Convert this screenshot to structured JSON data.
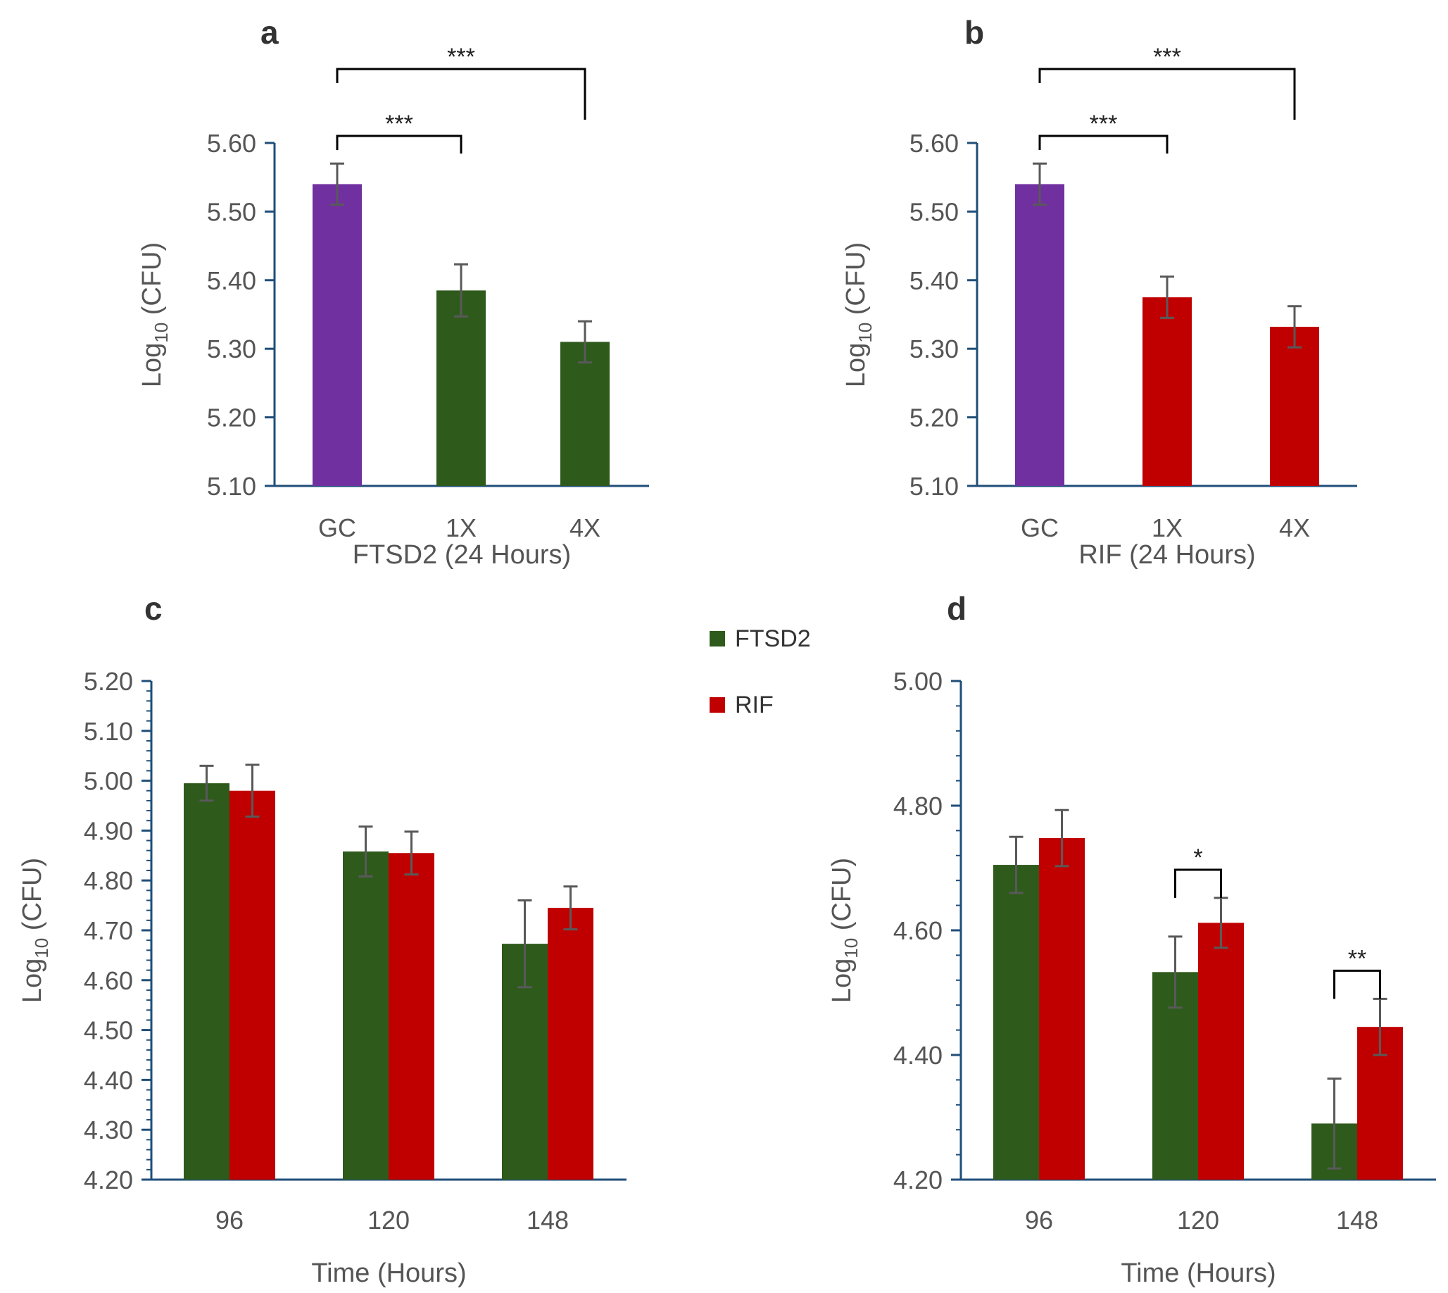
{
  "legend": {
    "items": [
      {
        "label": "FTSD2",
        "color": "#2e5a1c"
      },
      {
        "label": "RIF",
        "color": "#c00000"
      }
    ],
    "placement": "between-top-panels-c-and-d"
  },
  "colors": {
    "gc": "#7030a0",
    "ftsd2": "#2e5a1c",
    "rif": "#c00000",
    "axis": "#1f4e79",
    "error_bar": "#595959"
  },
  "chart_data": [
    {
      "panel": "a",
      "type": "bar",
      "categories": [
        "GC",
        "1X",
        "4X"
      ],
      "values": [
        5.54,
        5.385,
        5.31
      ],
      "errors": [
        0.03,
        0.038,
        0.03
      ],
      "bar_colors": [
        "#7030a0",
        "#2e5a1c",
        "#2e5a1c"
      ],
      "title": "",
      "xlabel": "FTSD2 (24 Hours)",
      "ylabel_main": "Log",
      "ylabel_sub": "10",
      "ylabel_rest": "(CFU)",
      "ylim": [
        5.1,
        5.6
      ],
      "yticks": [
        "5.10",
        "5.20",
        "5.30",
        "5.40",
        "5.50",
        "5.60"
      ],
      "grid": false,
      "significance": [
        {
          "from": 0,
          "to": 1,
          "label": "***"
        },
        {
          "from": 0,
          "to": 2,
          "label": "***"
        }
      ]
    },
    {
      "panel": "b",
      "type": "bar",
      "categories": [
        "GC",
        "1X",
        "4X"
      ],
      "values": [
        5.54,
        5.375,
        5.332
      ],
      "errors": [
        0.03,
        0.03,
        0.03
      ],
      "bar_colors": [
        "#7030a0",
        "#c00000",
        "#c00000"
      ],
      "title": "",
      "xlabel": "RIF (24 Hours)",
      "ylabel_main": "Log",
      "ylabel_sub": "10",
      "ylabel_rest": "(CFU)",
      "ylim": [
        5.1,
        5.6
      ],
      "yticks": [
        "5.10",
        "5.20",
        "5.30",
        "5.40",
        "5.50",
        "5.60"
      ],
      "grid": false,
      "significance": [
        {
          "from": 0,
          "to": 1,
          "label": "***"
        },
        {
          "from": 0,
          "to": 2,
          "label": "***"
        }
      ]
    },
    {
      "panel": "c",
      "type": "bar",
      "categories": [
        "96",
        "120",
        "148"
      ],
      "series": [
        {
          "name": "FTSD2",
          "color": "#2e5a1c",
          "values": [
            4.995,
            4.858,
            4.673
          ],
          "errors": [
            0.035,
            0.05,
            0.087
          ]
        },
        {
          "name": "RIF",
          "color": "#c00000",
          "values": [
            4.98,
            4.855,
            4.745
          ],
          "errors": [
            0.052,
            0.043,
            0.043
          ]
        }
      ],
      "title": "",
      "xlabel": "Time (Hours)",
      "ylabel_main": "Log",
      "ylabel_sub": "10",
      "ylabel_rest": "(CFU)",
      "ylim": [
        4.2,
        5.2
      ],
      "yticks": [
        "4.20",
        "4.30",
        "4.40",
        "4.50",
        "4.60",
        "4.70",
        "4.80",
        "4.90",
        "5.00",
        "5.10",
        "5.20"
      ],
      "grid": false,
      "significance": []
    },
    {
      "panel": "d",
      "type": "bar",
      "categories": [
        "96",
        "120",
        "148"
      ],
      "series": [
        {
          "name": "FTSD2",
          "color": "#2e5a1c",
          "values": [
            4.705,
            4.533,
            4.29
          ],
          "errors": [
            0.045,
            0.057,
            0.072
          ]
        },
        {
          "name": "RIF",
          "color": "#c00000",
          "values": [
            4.748,
            4.612,
            4.445
          ],
          "errors": [
            0.045,
            0.04,
            0.045
          ]
        }
      ],
      "title": "",
      "xlabel": "Time (Hours)",
      "ylabel_main": "Log",
      "ylabel_sub": "10",
      "ylabel_rest": "(CFU)",
      "ylim": [
        4.2,
        5.0
      ],
      "yticks": [
        "4.20",
        "4.40",
        "4.60",
        "4.80",
        "5.00"
      ],
      "grid": false,
      "significance": [
        {
          "group": 1,
          "label": "*"
        },
        {
          "group": 2,
          "label": "**"
        }
      ]
    }
  ]
}
